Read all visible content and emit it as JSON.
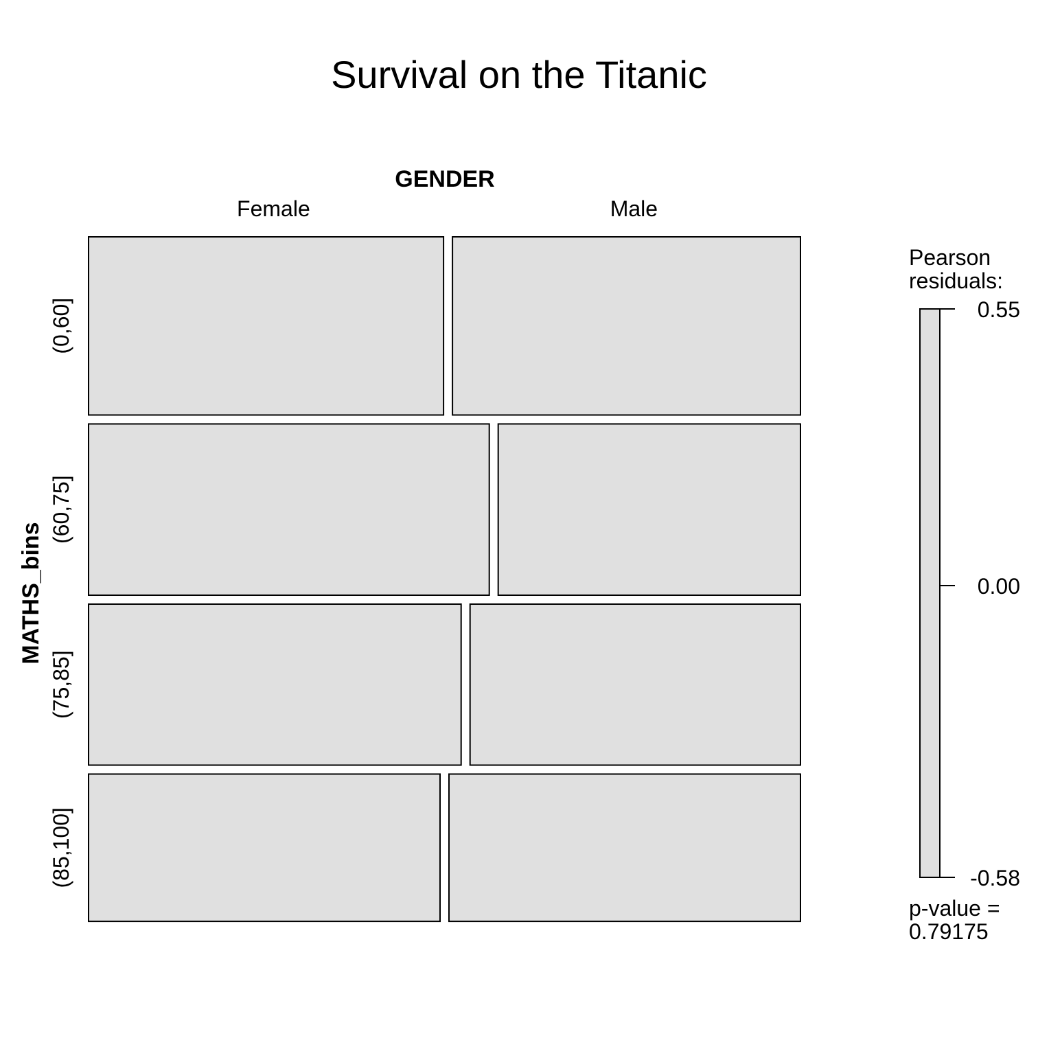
{
  "chart_data": {
    "type": "mosaic",
    "title": "Survival on the Titanic",
    "column_variable": "GENDER",
    "row_variable": "MATHS_bins",
    "columns": [
      "Female",
      "Male"
    ],
    "rows": [
      "(0,60]",
      "(60,75]",
      "(75,85]",
      "(85,100]"
    ],
    "row_proportions": [
      0.26,
      0.25,
      0.235,
      0.215
    ],
    "female_share_by_row": [
      0.505,
      0.57,
      0.53,
      0.5
    ],
    "tile_fill": "#e0e0e0",
    "legend": {
      "title_line1": "Pearson",
      "title_line2": "residuals:",
      "ticks": [
        "0.55",
        "0.00",
        "-0.58"
      ],
      "tick_values": [
        0.55,
        0.0,
        -0.58
      ],
      "range": [
        -0.58,
        0.55
      ],
      "pvalue_line1": "p-value =",
      "pvalue_line2": "0.79175"
    }
  }
}
